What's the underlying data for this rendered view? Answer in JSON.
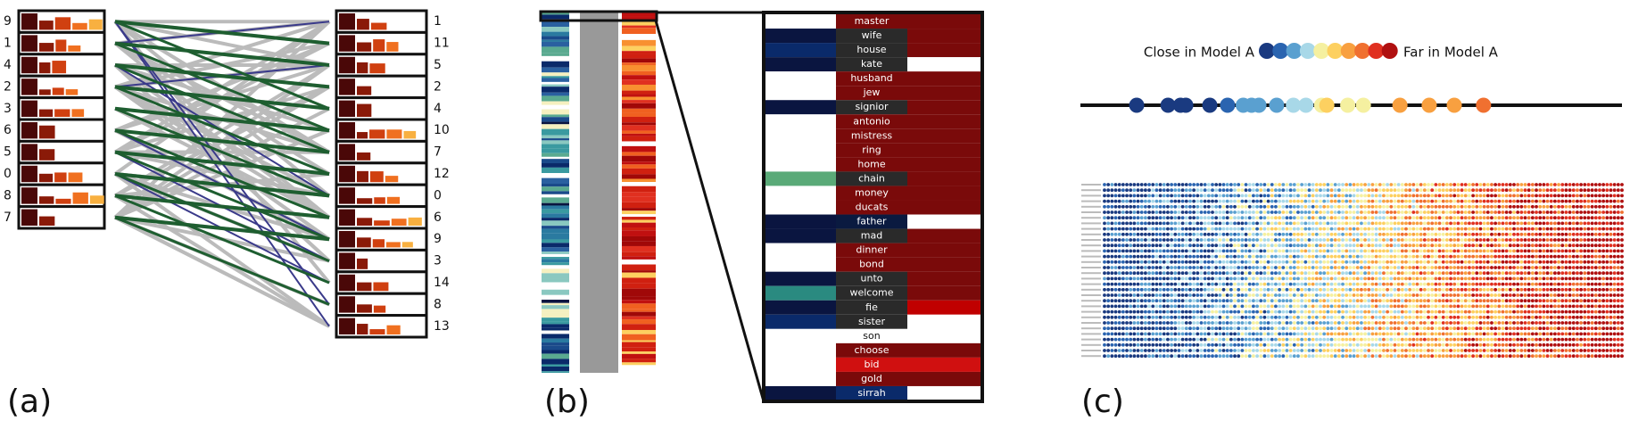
{
  "panels": {
    "a": {
      "label": "(a)",
      "left_topics": [
        9,
        1,
        4,
        2,
        3,
        6,
        5,
        0,
        8,
        7
      ],
      "right_topics": [
        1,
        11,
        5,
        2,
        4,
        10,
        7,
        12,
        0,
        6,
        9,
        3,
        14,
        8,
        13
      ]
    },
    "b": {
      "label": "(b)",
      "words": [
        "master",
        "wife",
        "house",
        "kate",
        "husband",
        "jew",
        "signior",
        "antonio",
        "mistress",
        "ring",
        "home",
        "chain",
        "money",
        "ducats",
        "father",
        "mad",
        "dinner",
        "bond",
        "unto",
        "welcome",
        "fie",
        "sister",
        "son",
        "choose",
        "bid",
        "gold",
        "sirrah"
      ]
    },
    "c": {
      "label": "(c)",
      "legend_left": "Close in Model A",
      "legend_right": "Far in Model A"
    }
  }
}
